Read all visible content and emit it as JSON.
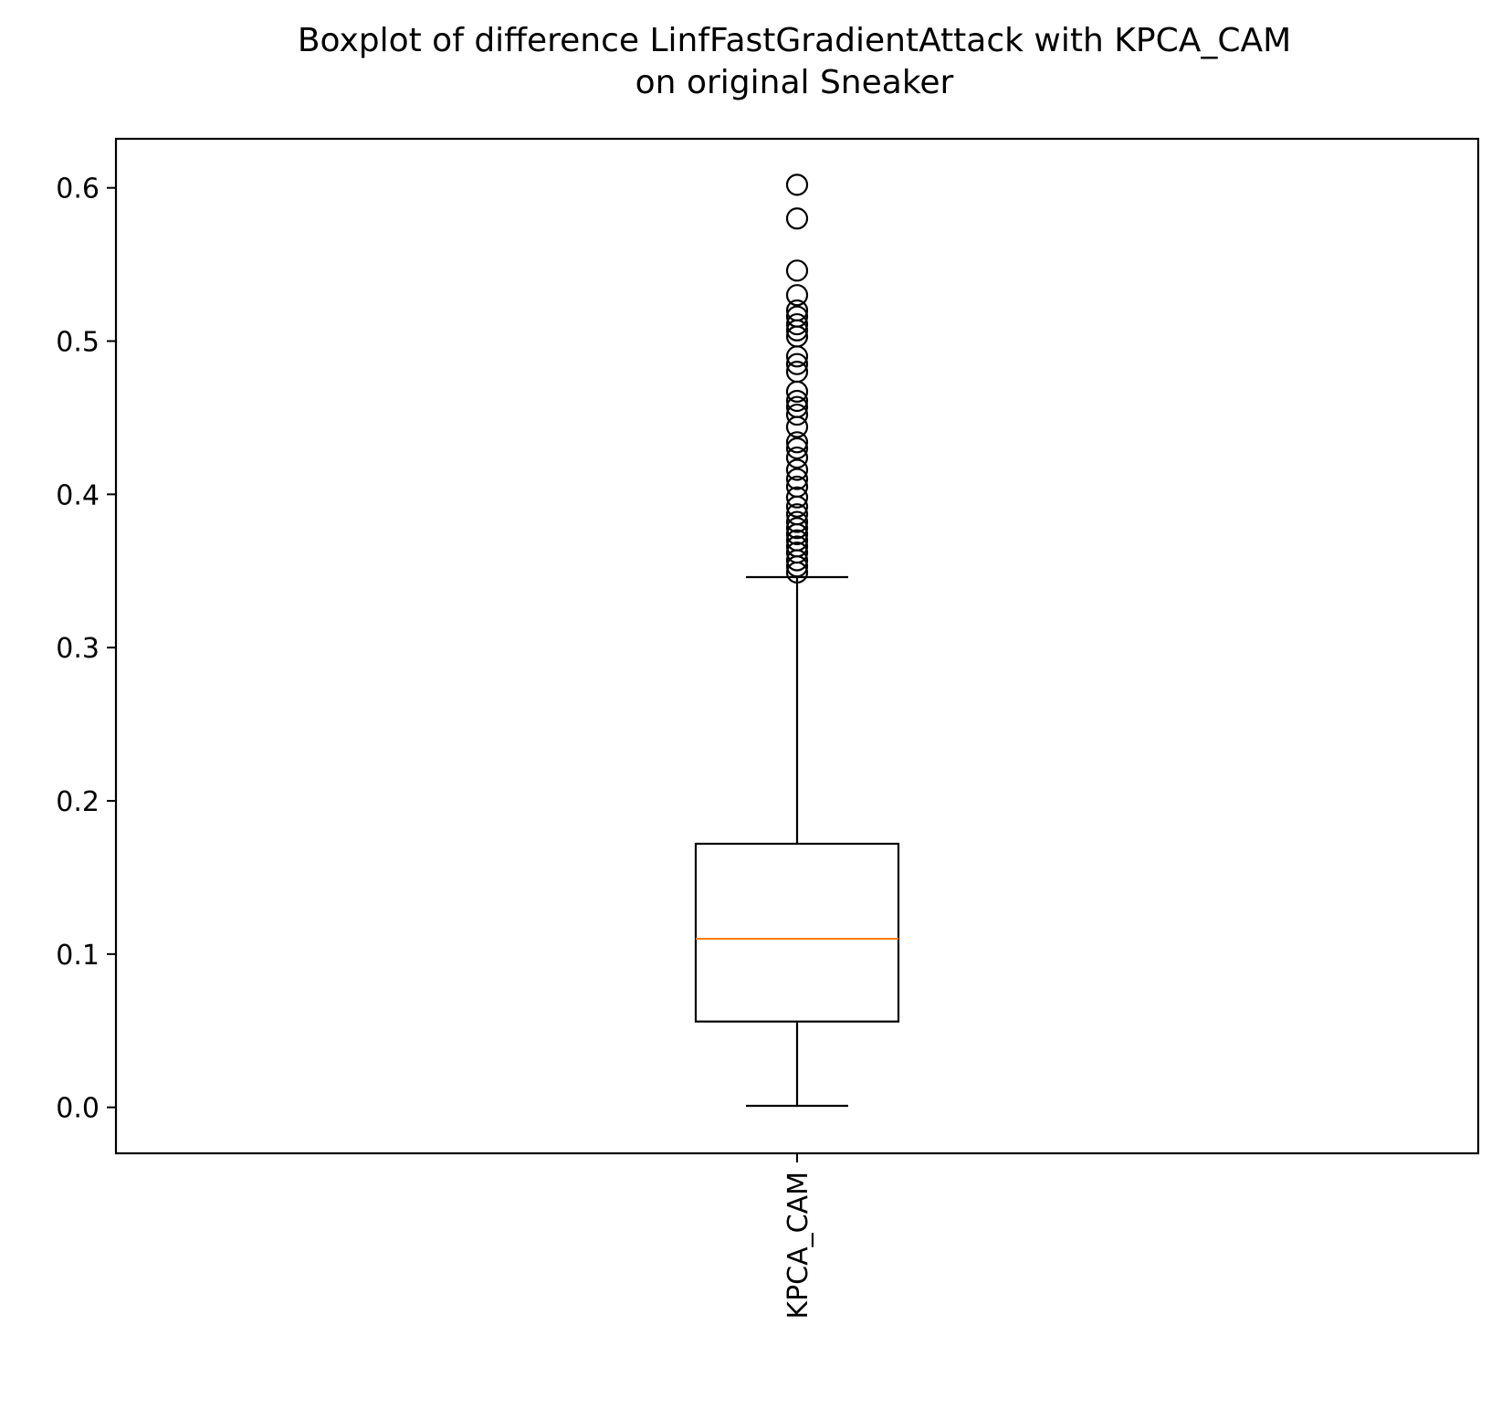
{
  "chart_data": {
    "type": "boxplot",
    "title_line1": "Boxplot of difference LinfFastGradientAttack with KPCA_CAM",
    "title_line2": "on original Sneaker",
    "xlabel": "",
    "ylabel": "",
    "ylim": [
      -0.03,
      0.632
    ],
    "yticks": [
      0.0,
      0.1,
      0.2,
      0.3,
      0.4,
      0.5,
      0.6
    ],
    "ytick_labels": [
      "0.0",
      "0.1",
      "0.2",
      "0.3",
      "0.4",
      "0.5",
      "0.6"
    ],
    "categories": [
      "KPCA_CAM"
    ],
    "boxes": [
      {
        "label": "KPCA_CAM",
        "whisker_low": 0.001,
        "q1": 0.056,
        "median": 0.11,
        "q3": 0.172,
        "whisker_high": 0.346,
        "outliers": [
          0.349,
          0.353,
          0.357,
          0.362,
          0.366,
          0.37,
          0.374,
          0.378,
          0.382,
          0.387,
          0.392,
          0.398,
          0.405,
          0.41,
          0.416,
          0.424,
          0.43,
          0.434,
          0.444,
          0.452,
          0.457,
          0.461,
          0.467,
          0.48,
          0.485,
          0.49,
          0.503,
          0.507,
          0.511,
          0.516,
          0.52,
          0.53,
          0.546,
          0.58,
          0.602
        ]
      }
    ],
    "colors": {
      "box": "#000000",
      "median": "#ff7f0e",
      "flier": "#000000"
    },
    "grid": false
  }
}
